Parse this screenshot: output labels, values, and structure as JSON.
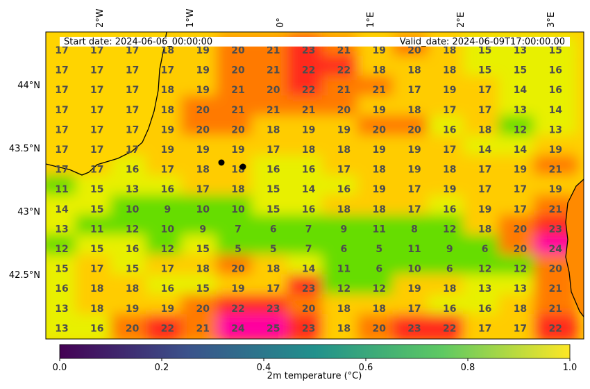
{
  "header": {
    "start_date": "Start date: 2024-06-06_00:00:00",
    "valid_date": "Valid_date: 2024-06-09T17:00:00.00"
  },
  "axes": {
    "lon_ticks": [
      "2°W",
      "1°W",
      "0°",
      "1°E",
      "2°E",
      "3°E"
    ],
    "lat_ticks": [
      "44°N",
      "43.5°N",
      "43°N",
      "42.5°N"
    ]
  },
  "colorbar": {
    "label": "2m temperature ($^\\circ$C)",
    "label_display": "2m temperature (°C)",
    "ticks": [
      "0.0",
      "0.2",
      "0.4",
      "0.6",
      "0.8",
      "1.0"
    ],
    "colormap": "viridis",
    "colors": [
      "#440154",
      "#3b528b",
      "#21918c",
      "#5ec962",
      "#fde725"
    ]
  },
  "field_colors": {
    "warm": "#ff7a00",
    "hot": "#ff2a1a",
    "very_hot": "#ff00a0",
    "mild": "#ffcc00",
    "cool": "#e8f000",
    "cold": "#66dd00",
    "sea": "#ffd400"
  },
  "map_markers": [
    "city-dot",
    "city-dot"
  ],
  "chart_data": {
    "type": "heatmap",
    "title": "",
    "start_date": "2024-06-06_00:00:00",
    "valid_date": "2024-06-09T17:00:00.00",
    "variable": "2m temperature (°C)",
    "colorbar_range": [
      0.0,
      1.0
    ],
    "lon_range": [
      -2.6,
      3.3
    ],
    "lat_range": [
      42.0,
      44.4
    ],
    "grid_values": [
      [
        17,
        17,
        17,
        18,
        19,
        20,
        21,
        23,
        21,
        19,
        20,
        18,
        15,
        13,
        15
      ],
      [
        17,
        17,
        17,
        17,
        19,
        20,
        21,
        22,
        22,
        18,
        18,
        18,
        15,
        15,
        16
      ],
      [
        17,
        17,
        17,
        18,
        19,
        21,
        20,
        22,
        21,
        21,
        17,
        19,
        17,
        14,
        16
      ],
      [
        17,
        17,
        17,
        18,
        20,
        21,
        21,
        21,
        20,
        19,
        18,
        17,
        17,
        13,
        14
      ],
      [
        17,
        17,
        17,
        19,
        20,
        20,
        18,
        19,
        19,
        20,
        20,
        16,
        18,
        12,
        13
      ],
      [
        17,
        17,
        17,
        19,
        19,
        19,
        17,
        18,
        18,
        19,
        19,
        17,
        14,
        14,
        19
      ],
      [
        17,
        17,
        16,
        17,
        18,
        18,
        16,
        16,
        17,
        18,
        19,
        18,
        17,
        19,
        21
      ],
      [
        11,
        15,
        13,
        16,
        17,
        18,
        15,
        14,
        16,
        19,
        17,
        19,
        17,
        17,
        19
      ],
      [
        14,
        15,
        10,
        9,
        10,
        10,
        15,
        16,
        18,
        18,
        17,
        16,
        19,
        17,
        21
      ],
      [
        13,
        11,
        12,
        10,
        9,
        7,
        6,
        7,
        9,
        11,
        8,
        12,
        18,
        20,
        23
      ],
      [
        12,
        15,
        16,
        12,
        15,
        5,
        5,
        7,
        6,
        5,
        11,
        9,
        6,
        20,
        24
      ],
      [
        15,
        17,
        15,
        17,
        18,
        20,
        18,
        14,
        11,
        6,
        10,
        6,
        12,
        12,
        20
      ],
      [
        16,
        18,
        18,
        16,
        15,
        19,
        17,
        23,
        12,
        12,
        19,
        18,
        13,
        13,
        21
      ],
      [
        13,
        18,
        19,
        19,
        20,
        22,
        23,
        20,
        18,
        18,
        17,
        16,
        16,
        18,
        21
      ],
      [
        13,
        16,
        20,
        22,
        21,
        24,
        25,
        23,
        18,
        20,
        23,
        22,
        17,
        17,
        22
      ]
    ]
  }
}
